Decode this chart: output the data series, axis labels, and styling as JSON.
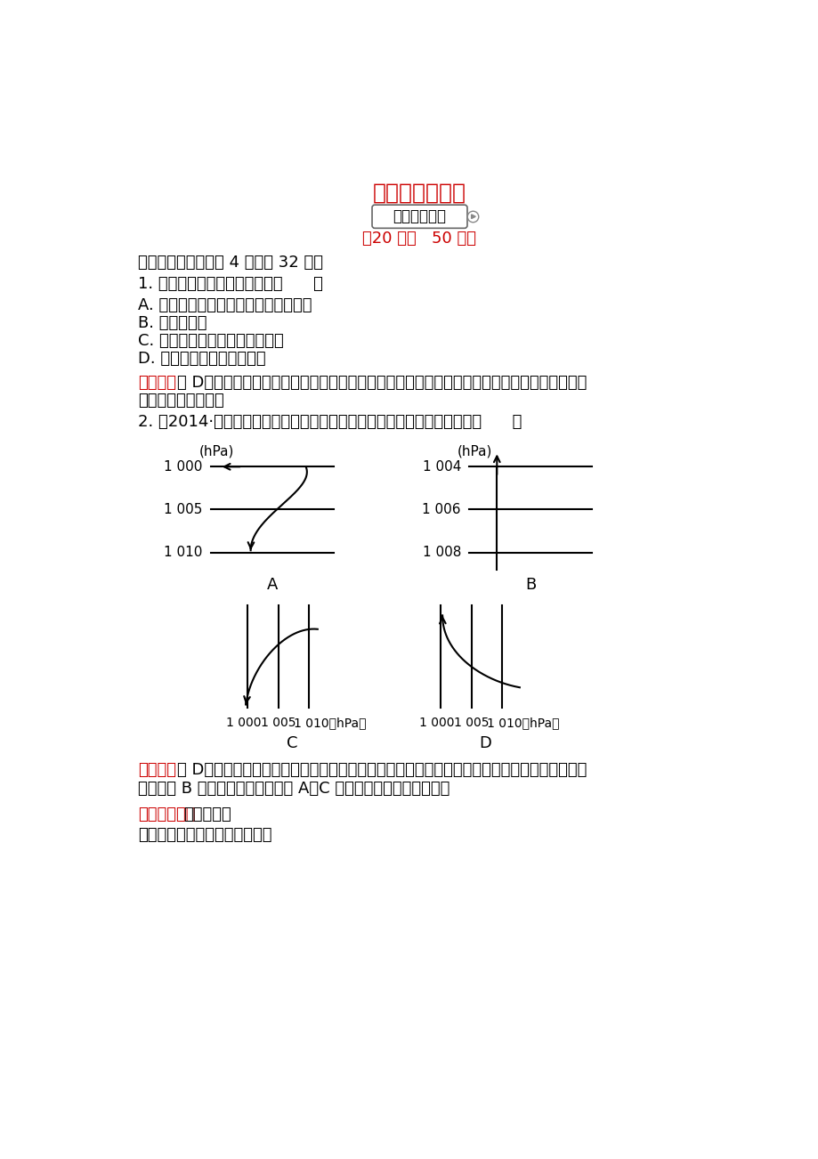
{
  "title": "大气的水平运动",
  "subtitle_box": "基础巳固训练",
  "subtitle_time": "（20 分钟   50 分）",
  "section1": "一、选择题（每小题 4 分，共 32 分）",
  "q1": "1. 影响近地面风送的力有哪些（      ）",
  "q1_A": "A. 地球自转产生的地转偏向力和摩擦力",
  "q1_B": "B. 地转偏向力",
  "q1_C": "C. 水平气压梯度力和地转偏向力",
  "q1_D": "D. 水平气压梯度力和摩擦力",
  "q1_ans_prefix": "【解析】",
  "q1_ans": "选 D。在影响风形成的三个力中，水平气压梯度力和摩擦力可以影响风速，而地转偏向力只影响",
  "q1_ans2": "风向，不影响风速。",
  "q2": "2. （2014·沈阳高一检测）下列四幅图能正确反映北半球近地面风向的是（      ）",
  "q2_ans_prefix": "【解析】",
  "q2_ans": "选 D。北半球近地面风向受水平气压梯度力、地转偏向力和摩擦力三力的影响，风向与等压线斜",
  "q2_ans2": "交，图中 B 风向与等压线垂直，而 A、C 风向向左偏，偏转方向错。",
  "tip_prefix": "【方法技巧】",
  "tip": "三步画风向",
  "step1": "第一步：画出水平气压梯度力；",
  "bg_color": "#ffffff",
  "text_color": "#000000",
  "red_color": "#cc0000"
}
